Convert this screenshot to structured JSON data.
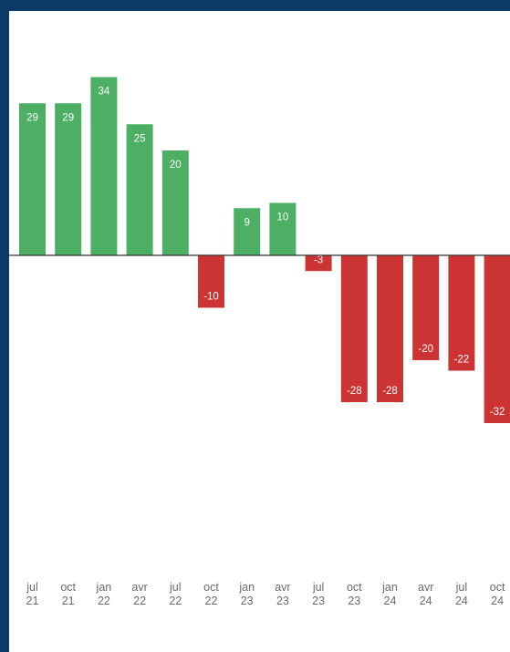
{
  "chart_data": {
    "type": "bar",
    "title": "",
    "xlabel": "",
    "ylabel": "",
    "categories": [
      [
        "jul",
        "21"
      ],
      [
        "oct",
        "21"
      ],
      [
        "jan",
        "22"
      ],
      [
        "avr",
        "22"
      ],
      [
        "jul",
        "22"
      ],
      [
        "oct",
        "22"
      ],
      [
        "jan",
        "23"
      ],
      [
        "avr",
        "23"
      ],
      [
        "jul",
        "23"
      ],
      [
        "oct",
        "23"
      ],
      [
        "jan",
        "24"
      ],
      [
        "avr",
        "24"
      ],
      [
        "jul",
        "24"
      ],
      [
        "oct",
        "24"
      ]
    ],
    "values": [
      29,
      29,
      34,
      25,
      20,
      -10,
      9,
      10,
      -3,
      -28,
      -28,
      -20,
      -22,
      -32
    ],
    "ylim": [
      -36,
      40
    ],
    "grid": false,
    "colors": {
      "positive": "#4caf63",
      "negative": "#cc3333",
      "zero_line": "#333333"
    }
  }
}
